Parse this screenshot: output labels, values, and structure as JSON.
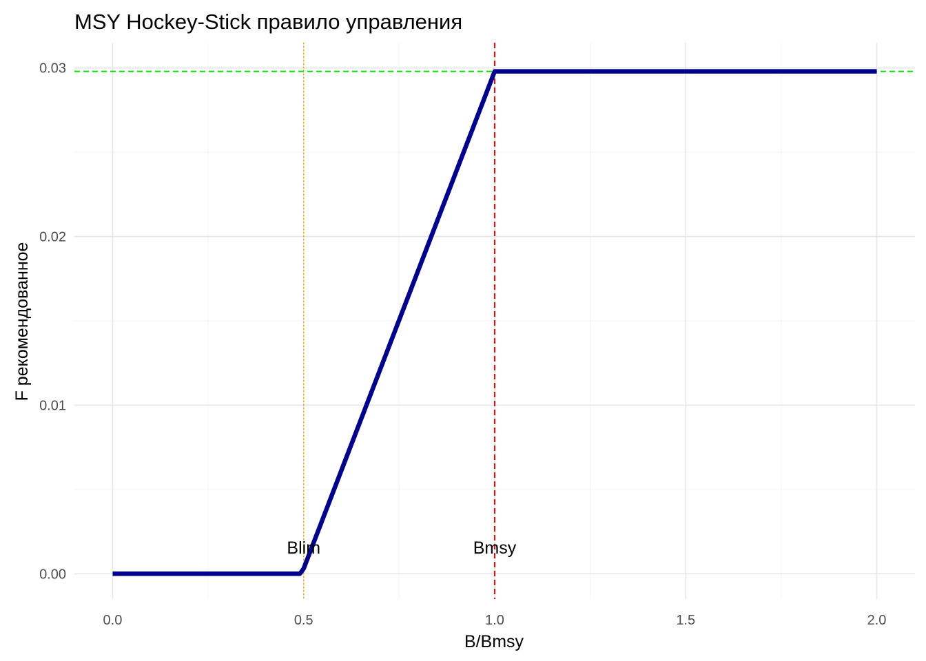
{
  "chart_data": {
    "type": "line",
    "title": "MSY Hockey-Stick правило управления",
    "xlabel": "B/Bmsy",
    "ylabel": "F рекомендованное",
    "xlim": [
      -0.1,
      2.1
    ],
    "ylim": [
      -0.0015,
      0.0315
    ],
    "x_ticks": [
      0.0,
      0.5,
      1.0,
      1.5,
      2.0
    ],
    "x_tick_labels": [
      "0.0",
      "0.5",
      "1.0",
      "1.5",
      "2.0"
    ],
    "y_ticks": [
      0.0,
      0.01,
      0.02,
      0.03
    ],
    "y_tick_labels": [
      "0.00",
      "0.01",
      "0.02",
      "0.03"
    ],
    "grid": true,
    "series": [
      {
        "x": [
          0.0,
          0.49,
          0.5,
          1.0,
          2.0
        ],
        "y": [
          0.0,
          0.0,
          0.0003,
          0.0298,
          0.0298
        ],
        "color": "#00008b"
      }
    ],
    "reference_lines": [
      {
        "orientation": "vertical",
        "value": 0.5,
        "style": "dotted",
        "color": "#ffa500"
      },
      {
        "orientation": "vertical",
        "value": 1.0,
        "style": "dashed",
        "color": "#ff0000"
      },
      {
        "orientation": "horizontal",
        "value": 0.0298,
        "style": "dashed",
        "color": "#00e000"
      }
    ],
    "annotations": [
      {
        "text": "Blim",
        "x": 0.5,
        "y": 0.0012
      },
      {
        "text": "Bmsy",
        "x": 1.0,
        "y": 0.0012
      }
    ]
  }
}
